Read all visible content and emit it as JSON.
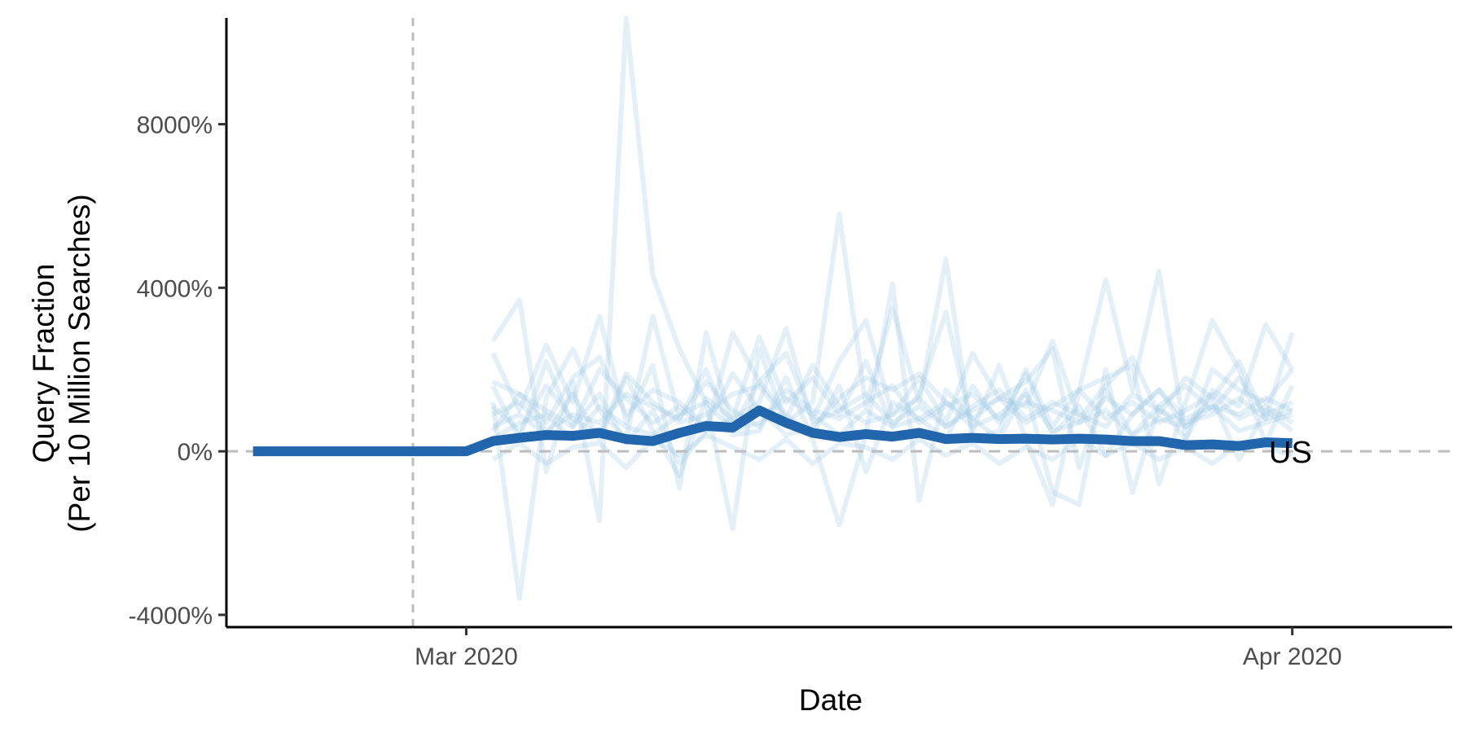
{
  "chart_data": {
    "type": "line",
    "title": "",
    "xlabel": "Date",
    "ylabel_line1": "Query Fraction",
    "ylabel_line2": "(Per 10 Million Searches)",
    "y_unit": "%",
    "ylim": [
      -4300,
      10600
    ],
    "xlim": [
      "2020-02-21",
      "2020-04-07"
    ],
    "grid": false,
    "x_ticks": [
      {
        "date": "2020-03-01",
        "label": "Mar 2020"
      },
      {
        "date": "2020-04-01",
        "label": "Apr 2020"
      }
    ],
    "y_ticks": [
      {
        "value": 8000,
        "label": "8000%"
      },
      {
        "value": 4000,
        "label": "4000%"
      },
      {
        "value": 0,
        "label": "0%"
      },
      {
        "value": -4000,
        "label": "-4000%"
      }
    ],
    "reference_lines": {
      "hline": {
        "value": 0,
        "color": "#bdbdbd",
        "dash": true
      },
      "vline": {
        "date": "2020-02-28",
        "color": "#bdbdbd",
        "dash": true
      }
    },
    "highlight": {
      "name": "US",
      "label": "US",
      "color": "#2166ac",
      "dates": [
        "2020-02-22",
        "2020-02-23",
        "2020-02-24",
        "2020-02-25",
        "2020-02-26",
        "2020-02-27",
        "2020-02-28",
        "2020-02-29",
        "2020-03-01",
        "2020-03-02",
        "2020-03-03",
        "2020-03-04",
        "2020-03-05",
        "2020-03-06",
        "2020-03-07",
        "2020-03-08",
        "2020-03-09",
        "2020-03-10",
        "2020-03-11",
        "2020-03-12",
        "2020-03-13",
        "2020-03-14",
        "2020-03-15",
        "2020-03-16",
        "2020-03-17",
        "2020-03-18",
        "2020-03-19",
        "2020-03-20",
        "2020-03-21",
        "2020-03-22",
        "2020-03-23",
        "2020-03-24",
        "2020-03-25",
        "2020-03-26",
        "2020-03-27",
        "2020-03-28",
        "2020-03-29",
        "2020-03-30",
        "2020-03-31",
        "2020-04-01"
      ],
      "values": [
        0,
        0,
        0,
        0,
        0,
        0,
        0,
        0,
        0,
        250,
        330,
        400,
        380,
        450,
        300,
        250,
        450,
        620,
        580,
        1000,
        700,
        450,
        350,
        420,
        360,
        450,
        300,
        330,
        300,
        310,
        290,
        310,
        290,
        250,
        250,
        150,
        170,
        130,
        220,
        200
      ]
    },
    "background_series_color": "#9ecae1",
    "background_series_dates": [
      "2020-03-02",
      "2020-03-03",
      "2020-03-04",
      "2020-03-05",
      "2020-03-06",
      "2020-03-07",
      "2020-03-08",
      "2020-03-09",
      "2020-03-10",
      "2020-03-11",
      "2020-03-12",
      "2020-03-13",
      "2020-03-14",
      "2020-03-15",
      "2020-03-16",
      "2020-03-17",
      "2020-03-18",
      "2020-03-19",
      "2020-03-20",
      "2020-03-21",
      "2020-03-22",
      "2020-03-23",
      "2020-03-24",
      "2020-03-25",
      "2020-03-26",
      "2020-03-27",
      "2020-03-28",
      "2020-03-29",
      "2020-03-30",
      "2020-03-31",
      "2020-04-01"
    ],
    "background_series": [
      [
        2700,
        3700,
        -500,
        1700,
        -1700,
        10600,
        4300,
        2500,
        1200,
        -1900,
        2500,
        700,
        1200,
        5800,
        1100,
        3500,
        1200,
        4700,
        300,
        500,
        2000,
        600,
        1500,
        4200,
        1500,
        4400,
        300,
        2000,
        1500,
        1200,
        2000
      ],
      [
        1200,
        -3600,
        1300,
        2500,
        1000,
        300,
        3300,
        800,
        2000,
        400,
        500,
        1800,
        300,
        -1800,
        400,
        4100,
        -1200,
        1500,
        800,
        300,
        1500,
        -1000,
        -1300,
        2000,
        -1000,
        1100,
        300,
        1500,
        1100,
        3100,
        2000
      ],
      [
        600,
        900,
        400,
        1400,
        300,
        1800,
        500,
        -600,
        1300,
        800,
        2800,
        1200,
        1800,
        900,
        2200,
        600,
        1400,
        3400,
        500,
        2100,
        300,
        -1300,
        1500,
        1800,
        2100,
        -800,
        1200,
        3200,
        2000,
        200,
        1600
      ],
      [
        1700,
        1400,
        700,
        1800,
        2300,
        900,
        1500,
        1200,
        600,
        1900,
        1000,
        400,
        600,
        1300,
        1800,
        1500,
        1900,
        1200,
        800,
        1300,
        1700,
        2500,
        -400,
        1500,
        400,
        1100,
        1600,
        1000,
        1800,
        900,
        1200
      ],
      [
        300,
        700,
        900,
        300,
        1100,
        600,
        400,
        900,
        1200,
        500,
        700,
        1300,
        900,
        400,
        1000,
        600,
        800,
        1200,
        600,
        900,
        1400,
        500,
        700,
        1000,
        400,
        800,
        600,
        1100,
        500,
        700,
        900
      ],
      [
        1100,
        500,
        1600,
        800,
        400,
        1900,
        1200,
        700,
        900,
        1400,
        1600,
        800,
        2100,
        1100,
        700,
        900,
        1300,
        600,
        1100,
        1500,
        800,
        1200,
        900,
        600,
        1400,
        1000,
        700,
        900,
        1300,
        800,
        1000
      ],
      [
        -200,
        200,
        -300,
        100,
        200,
        -400,
        300,
        -100,
        400,
        100,
        -200,
        300,
        -300,
        200,
        100,
        -200,
        300,
        -100,
        200,
        -300,
        100,
        -200,
        300,
        -100,
        200,
        -200,
        100,
        -300,
        200,
        100,
        -100
      ],
      [
        1600,
        300,
        2200,
        600,
        1400,
        200,
        1000,
        -300,
        500,
        2900,
        1700,
        900,
        400,
        1600,
        -500,
        1200,
        800,
        300,
        1600,
        700,
        1900,
        400,
        1100,
        -100,
        900,
        1500,
        600,
        1300,
        -200,
        1000,
        500
      ],
      [
        500,
        1400,
        1000,
        600,
        2000,
        1300,
        700,
        1100,
        500,
        800,
        1200,
        3000,
        700,
        1000,
        1400,
        700,
        1100,
        600,
        1000,
        1300,
        700,
        1100,
        1500,
        800,
        1200,
        700,
        1000,
        1400,
        800,
        1100,
        700
      ],
      [
        900,
        1200,
        500,
        900,
        700,
        1400,
        1100,
        800,
        1700,
        1000,
        600,
        1500,
        1000,
        800,
        1200,
        1600,
        700,
        1100,
        1400,
        800,
        1200,
        1000,
        700,
        1300,
        900,
        1500,
        800,
        1100,
        900,
        1300,
        1000
      ],
      [
        2400,
        1000,
        2600,
        1200,
        3300,
        700,
        2100,
        -900,
        2900,
        600,
        1700,
        2400,
        800,
        2200,
        3200,
        900,
        1800,
        700,
        2400,
        1300,
        1100,
        2700,
        800,
        1600,
        2300,
        900,
        1800,
        1300,
        2200,
        800,
        2900
      ]
    ]
  }
}
